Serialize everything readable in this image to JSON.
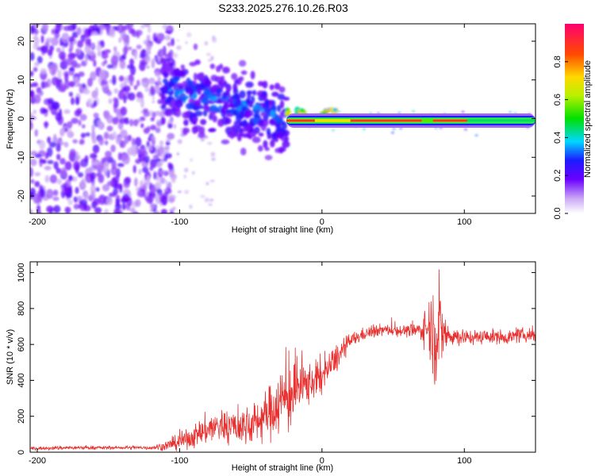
{
  "title": "S233.2025.276.10.26.R03",
  "chart_data": [
    {
      "type": "heatmap",
      "name": "spectrogram",
      "xlabel": "Height of straight line (km)",
      "ylabel": "Frequency (Hz)",
      "xlim": [
        -205,
        150
      ],
      "ylim": [
        -24.5,
        24.5
      ],
      "xticks": [
        "-200",
        "-100",
        "0",
        "100"
      ],
      "xtick_values": [
        -200,
        -100,
        0,
        100
      ],
      "yticks": [
        "-20",
        "-10",
        "0",
        "10",
        "20"
      ],
      "ytick_values": [
        -20,
        -10,
        0,
        10,
        20
      ],
      "colorbar": {
        "label": "Normalized spectral amplitude",
        "range": [
          0,
          1
        ],
        "ticks": [
          "0.0",
          "0.2",
          "0.4",
          "0.6",
          "0.8"
        ],
        "tick_values": [
          0.0,
          0.2,
          0.4,
          0.6,
          0.8
        ]
      },
      "regions": [
        {
          "name": "noise",
          "x": [
            -205,
            -112
          ],
          "freq_center": 0,
          "freq_spread": 24,
          "amplitude": 0.05
        },
        {
          "name": "onset",
          "x": [
            -112,
            -25
          ],
          "freq_center_start": 8,
          "freq_center_end": 0,
          "freq_spread": 4,
          "amplitude": 0.2
        },
        {
          "name": "carrier",
          "x": [
            -25,
            150
          ],
          "freq_center": -0.5,
          "freq_spread": 1,
          "amplitude": 0.9
        }
      ]
    },
    {
      "type": "line",
      "name": "snr",
      "xlabel": "Height of straight line (km)",
      "ylabel": "SNR (10 * v/v)",
      "xlim": [
        -205,
        150
      ],
      "ylim": [
        0,
        1060
      ],
      "xticks": [
        "-200",
        "-100",
        "0",
        "100"
      ],
      "xtick_values": [
        -200,
        -100,
        0,
        100
      ],
      "yticks": [
        "0",
        "200",
        "400",
        "600",
        "800",
        "1000"
      ],
      "ytick_values": [
        0,
        200,
        400,
        600,
        800,
        1000
      ],
      "series": [
        {
          "name": "SNR",
          "color": "#e8302f",
          "x": [
            -205,
            -180,
            -150,
            -120,
            -110,
            -100,
            -90,
            -80,
            -70,
            -60,
            -50,
            -40,
            -30,
            -25,
            -20,
            -10,
            0,
            10,
            20,
            30,
            40,
            50,
            60,
            70,
            75,
            80,
            85,
            90,
            100,
            110,
            120,
            130,
            140,
            150
          ],
          "values": [
            20,
            25,
            25,
            25,
            35,
            55,
            90,
            130,
            150,
            140,
            150,
            200,
            280,
            300,
            340,
            380,
            420,
            520,
            620,
            660,
            680,
            680,
            675,
            680,
            700,
            680,
            660,
            650,
            640,
            640,
            645,
            640,
            650,
            655
          ],
          "noise": [
            8,
            10,
            8,
            10,
            25,
            40,
            60,
            80,
            90,
            90,
            100,
            120,
            170,
            200,
            170,
            110,
            90,
            70,
            40,
            30,
            30,
            30,
            30,
            50,
            140,
            300,
            150,
            60,
            40,
            35,
            35,
            35,
            35,
            35
          ]
        }
      ]
    }
  ]
}
